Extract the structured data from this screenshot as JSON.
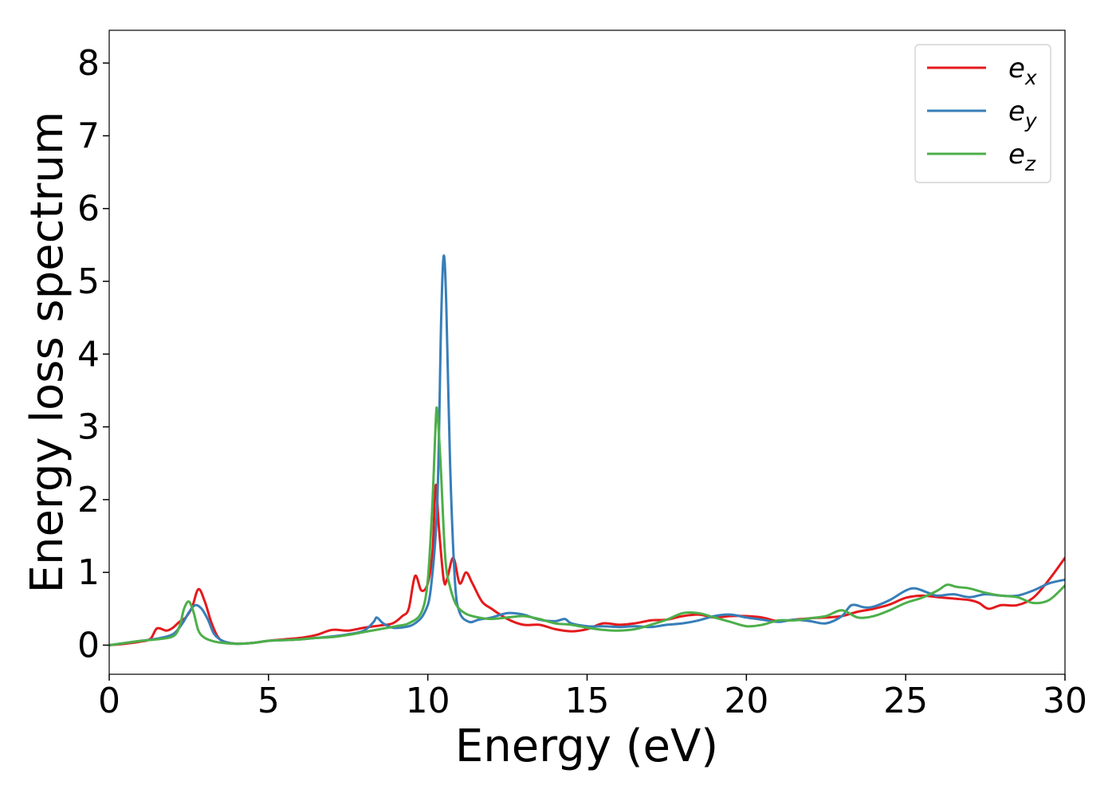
{
  "chart_data": {
    "type": "line",
    "title": "",
    "xlabel": "Energy (eV)",
    "ylabel": "Energy loss spectrum",
    "xlim": [
      0,
      30
    ],
    "ylim": [
      -0.4,
      8.45
    ],
    "xticks": [
      0,
      5,
      10,
      15,
      20,
      25,
      30
    ],
    "yticks": [
      0,
      1,
      2,
      3,
      4,
      5,
      6,
      7,
      8
    ],
    "grid": false,
    "legend_position": "top-right",
    "series": [
      {
        "name": "e_x",
        "label_base": "e",
        "label_sub": "x",
        "color": "#e41a1c",
        "points": [
          [
            0,
            0
          ],
          [
            0.5,
            0.02
          ],
          [
            1.0,
            0.05
          ],
          [
            1.3,
            0.09
          ],
          [
            1.5,
            0.23
          ],
          [
            1.8,
            0.2
          ],
          [
            2.0,
            0.24
          ],
          [
            2.2,
            0.32
          ],
          [
            2.4,
            0.38
          ],
          [
            2.6,
            0.52
          ],
          [
            2.8,
            0.77
          ],
          [
            3.0,
            0.6
          ],
          [
            3.2,
            0.32
          ],
          [
            3.4,
            0.12
          ],
          [
            3.6,
            0.05
          ],
          [
            4.0,
            0.02
          ],
          [
            4.5,
            0.03
          ],
          [
            5.0,
            0.06
          ],
          [
            5.5,
            0.08
          ],
          [
            6.0,
            0.1
          ],
          [
            6.5,
            0.14
          ],
          [
            7.0,
            0.21
          ],
          [
            7.5,
            0.2
          ],
          [
            8.0,
            0.24
          ],
          [
            8.5,
            0.27
          ],
          [
            8.9,
            0.3
          ],
          [
            9.2,
            0.4
          ],
          [
            9.4,
            0.5
          ],
          [
            9.6,
            0.95
          ],
          [
            9.8,
            0.75
          ],
          [
            10.0,
            0.85
          ],
          [
            10.15,
            1.3
          ],
          [
            10.25,
            2.2
          ],
          [
            10.35,
            1.6
          ],
          [
            10.5,
            0.9
          ],
          [
            10.6,
            0.9
          ],
          [
            10.8,
            1.2
          ],
          [
            11.0,
            0.85
          ],
          [
            11.2,
            1.0
          ],
          [
            11.4,
            0.85
          ],
          [
            11.7,
            0.6
          ],
          [
            12.0,
            0.5
          ],
          [
            12.5,
            0.36
          ],
          [
            13.0,
            0.28
          ],
          [
            13.5,
            0.28
          ],
          [
            14.0,
            0.22
          ],
          [
            14.5,
            0.19
          ],
          [
            15.0,
            0.22
          ],
          [
            15.5,
            0.3
          ],
          [
            16.0,
            0.28
          ],
          [
            16.5,
            0.3
          ],
          [
            17.0,
            0.34
          ],
          [
            17.5,
            0.35
          ],
          [
            18.0,
            0.4
          ],
          [
            18.5,
            0.42
          ],
          [
            19.0,
            0.38
          ],
          [
            19.5,
            0.4
          ],
          [
            20.0,
            0.4
          ],
          [
            20.5,
            0.38
          ],
          [
            21.0,
            0.33
          ],
          [
            21.5,
            0.35
          ],
          [
            22.0,
            0.37
          ],
          [
            22.5,
            0.38
          ],
          [
            23.0,
            0.4
          ],
          [
            23.5,
            0.46
          ],
          [
            24.0,
            0.5
          ],
          [
            24.5,
            0.56
          ],
          [
            25.0,
            0.65
          ],
          [
            25.5,
            0.68
          ],
          [
            26.0,
            0.66
          ],
          [
            26.5,
            0.64
          ],
          [
            27.0,
            0.62
          ],
          [
            27.3,
            0.58
          ],
          [
            27.6,
            0.5
          ],
          [
            28.0,
            0.55
          ],
          [
            28.5,
            0.55
          ],
          [
            29.0,
            0.65
          ],
          [
            29.5,
            0.9
          ],
          [
            30.0,
            1.2
          ]
        ]
      },
      {
        "name": "e_y",
        "label_base": "e",
        "label_sub": "y",
        "color": "#377eb8",
        "points": [
          [
            0,
            0
          ],
          [
            0.5,
            0.03
          ],
          [
            1.0,
            0.06
          ],
          [
            1.5,
            0.09
          ],
          [
            2.0,
            0.15
          ],
          [
            2.3,
            0.3
          ],
          [
            2.5,
            0.45
          ],
          [
            2.7,
            0.55
          ],
          [
            2.9,
            0.5
          ],
          [
            3.1,
            0.35
          ],
          [
            3.3,
            0.15
          ],
          [
            3.6,
            0.05
          ],
          [
            4.0,
            0.02
          ],
          [
            4.5,
            0.03
          ],
          [
            5.0,
            0.06
          ],
          [
            5.5,
            0.07
          ],
          [
            6.0,
            0.08
          ],
          [
            6.5,
            0.1
          ],
          [
            7.0,
            0.12
          ],
          [
            7.5,
            0.15
          ],
          [
            8.0,
            0.2
          ],
          [
            8.3,
            0.32
          ],
          [
            8.4,
            0.38
          ],
          [
            8.6,
            0.3
          ],
          [
            8.9,
            0.24
          ],
          [
            9.3,
            0.25
          ],
          [
            9.6,
            0.3
          ],
          [
            9.9,
            0.45
          ],
          [
            10.1,
            0.8
          ],
          [
            10.3,
            2.0
          ],
          [
            10.42,
            4.5
          ],
          [
            10.5,
            5.35
          ],
          [
            10.58,
            4.7
          ],
          [
            10.7,
            2.5
          ],
          [
            10.85,
            0.9
          ],
          [
            11.0,
            0.45
          ],
          [
            11.3,
            0.32
          ],
          [
            11.6,
            0.35
          ],
          [
            12.0,
            0.38
          ],
          [
            12.5,
            0.44
          ],
          [
            13.0,
            0.42
          ],
          [
            13.5,
            0.35
          ],
          [
            14.0,
            0.33
          ],
          [
            14.3,
            0.36
          ],
          [
            14.5,
            0.3
          ],
          [
            15.0,
            0.26
          ],
          [
            15.5,
            0.26
          ],
          [
            16.0,
            0.25
          ],
          [
            16.5,
            0.26
          ],
          [
            17.0,
            0.25
          ],
          [
            17.5,
            0.28
          ],
          [
            18.0,
            0.3
          ],
          [
            18.5,
            0.34
          ],
          [
            19.0,
            0.4
          ],
          [
            19.5,
            0.42
          ],
          [
            20.0,
            0.38
          ],
          [
            20.5,
            0.35
          ],
          [
            21.0,
            0.32
          ],
          [
            21.5,
            0.35
          ],
          [
            22.0,
            0.33
          ],
          [
            22.5,
            0.3
          ],
          [
            23.0,
            0.4
          ],
          [
            23.3,
            0.55
          ],
          [
            23.7,
            0.52
          ],
          [
            24.0,
            0.53
          ],
          [
            24.5,
            0.62
          ],
          [
            25.0,
            0.75
          ],
          [
            25.3,
            0.78
          ],
          [
            25.7,
            0.72
          ],
          [
            26.0,
            0.68
          ],
          [
            26.5,
            0.7
          ],
          [
            27.0,
            0.66
          ],
          [
            27.5,
            0.7
          ],
          [
            28.0,
            0.68
          ],
          [
            28.5,
            0.68
          ],
          [
            29.0,
            0.75
          ],
          [
            29.5,
            0.85
          ],
          [
            30.0,
            0.9
          ]
        ]
      },
      {
        "name": "e_z",
        "label_base": "e",
        "label_sub": "z",
        "color": "#4daf4a",
        "points": [
          [
            0,
            0
          ],
          [
            0.5,
            0.03
          ],
          [
            1.0,
            0.06
          ],
          [
            1.5,
            0.08
          ],
          [
            2.0,
            0.12
          ],
          [
            2.2,
            0.25
          ],
          [
            2.35,
            0.5
          ],
          [
            2.5,
            0.6
          ],
          [
            2.65,
            0.45
          ],
          [
            2.8,
            0.2
          ],
          [
            3.0,
            0.1
          ],
          [
            3.3,
            0.05
          ],
          [
            3.6,
            0.03
          ],
          [
            4.0,
            0.02
          ],
          [
            4.5,
            0.03
          ],
          [
            5.0,
            0.06
          ],
          [
            5.5,
            0.07
          ],
          [
            6.0,
            0.08
          ],
          [
            6.5,
            0.1
          ],
          [
            7.0,
            0.11
          ],
          [
            7.5,
            0.14
          ],
          [
            8.0,
            0.18
          ],
          [
            8.5,
            0.22
          ],
          [
            9.0,
            0.26
          ],
          [
            9.4,
            0.3
          ],
          [
            9.8,
            0.45
          ],
          [
            10.0,
            0.9
          ],
          [
            10.15,
            2.0
          ],
          [
            10.25,
            3.1
          ],
          [
            10.3,
            3.2
          ],
          [
            10.4,
            2.5
          ],
          [
            10.55,
            1.2
          ],
          [
            10.7,
            0.8
          ],
          [
            10.9,
            0.55
          ],
          [
            11.2,
            0.43
          ],
          [
            11.6,
            0.38
          ],
          [
            12.0,
            0.36
          ],
          [
            12.5,
            0.38
          ],
          [
            13.0,
            0.4
          ],
          [
            13.5,
            0.36
          ],
          [
            14.0,
            0.3
          ],
          [
            14.5,
            0.28
          ],
          [
            15.0,
            0.24
          ],
          [
            15.5,
            0.21
          ],
          [
            16.0,
            0.2
          ],
          [
            16.5,
            0.22
          ],
          [
            17.0,
            0.28
          ],
          [
            17.5,
            0.35
          ],
          [
            18.0,
            0.44
          ],
          [
            18.5,
            0.44
          ],
          [
            19.0,
            0.38
          ],
          [
            19.5,
            0.32
          ],
          [
            20.0,
            0.26
          ],
          [
            20.5,
            0.28
          ],
          [
            21.0,
            0.34
          ],
          [
            21.5,
            0.34
          ],
          [
            22.0,
            0.37
          ],
          [
            22.5,
            0.4
          ],
          [
            23.0,
            0.48
          ],
          [
            23.5,
            0.38
          ],
          [
            24.0,
            0.4
          ],
          [
            24.5,
            0.48
          ],
          [
            25.0,
            0.58
          ],
          [
            25.5,
            0.65
          ],
          [
            26.0,
            0.75
          ],
          [
            26.3,
            0.83
          ],
          [
            26.6,
            0.8
          ],
          [
            27.0,
            0.78
          ],
          [
            27.5,
            0.72
          ],
          [
            28.0,
            0.68
          ],
          [
            28.5,
            0.66
          ],
          [
            29.0,
            0.58
          ],
          [
            29.5,
            0.62
          ],
          [
            30.0,
            0.82
          ]
        ]
      }
    ]
  }
}
